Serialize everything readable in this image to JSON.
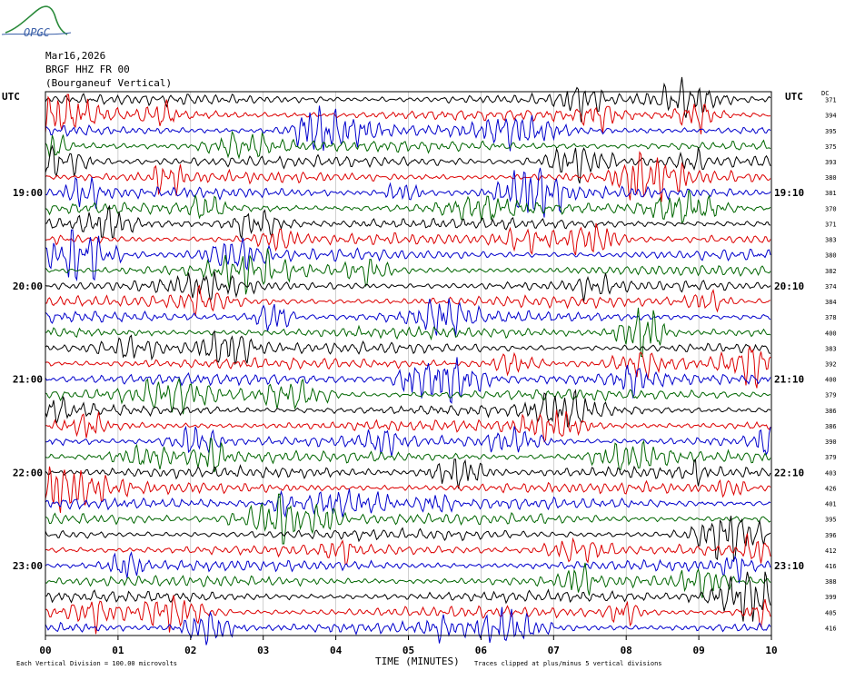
{
  "logo": {
    "text": "OPGC",
    "icon": "mountain-logo-icon"
  },
  "header": {
    "date": "Mar16,2026",
    "station": "BRGF HHZ FR 00",
    "location": "(Bourganeuf Vertical)"
  },
  "labels": {
    "left_unit": "UTC",
    "right_unit": "UTC",
    "dc_label": "DC",
    "xlabel": "TIME (MINUTES)",
    "scale_note": "Each Vertical Division =  100.00 microvolts",
    "clip_note": "Traces clipped at plus/minus 5 vertical divisions"
  },
  "chart_data": {
    "type": "line",
    "title": "",
    "xlabel": "TIME (MINUTES)",
    "xlim": [
      0,
      10
    ],
    "x_ticks": [
      "00",
      "01",
      "02",
      "03",
      "04",
      "05",
      "06",
      "07",
      "08",
      "09",
      "10"
    ],
    "grid": true,
    "trace_colors": [
      "#000000",
      "#dd0000",
      "#0000cc",
      "#006600"
    ],
    "left_hour_labels": [
      {
        "row": 6,
        "label": "19:00"
      },
      {
        "row": 12,
        "label": "20:00"
      },
      {
        "row": 18,
        "label": "21:00"
      },
      {
        "row": 24,
        "label": "22:00"
      },
      {
        "row": 30,
        "label": "23:00"
      }
    ],
    "right_hour_labels": [
      {
        "row": 6,
        "label": "19:10"
      },
      {
        "row": 12,
        "label": "20:10"
      },
      {
        "row": 18,
        "label": "21:10"
      },
      {
        "row": 24,
        "label": "22:10"
      },
      {
        "row": 30,
        "label": "23:10"
      }
    ],
    "dc_offsets": [
      "371",
      "394",
      "395",
      "375",
      "393",
      "380",
      "381",
      "370",
      "371",
      "383",
      "380",
      "382",
      "374",
      "384",
      "378",
      "400",
      "383",
      "392",
      "400",
      "379",
      "386",
      "386",
      "390",
      "379",
      "403",
      "426",
      "401",
      "395",
      "396",
      "412",
      "416",
      "388",
      "399",
      "405",
      "416"
    ],
    "rows": 35
  }
}
